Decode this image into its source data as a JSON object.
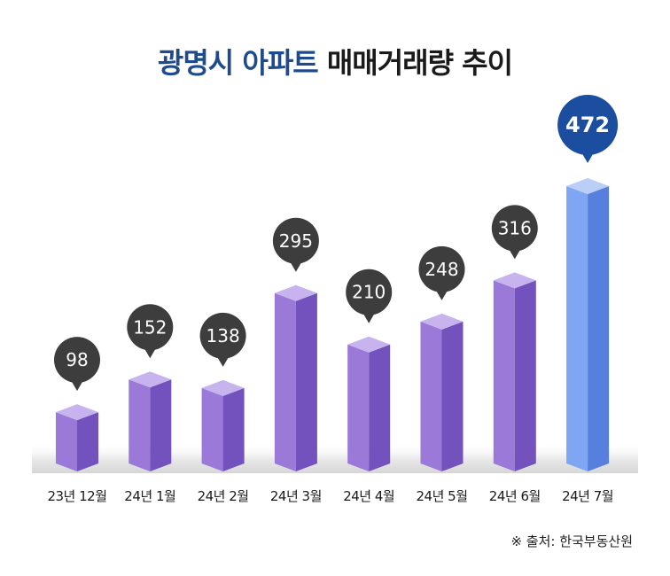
{
  "title": {
    "part1": "광명시 아파트",
    "part2": "매매거래량 추이"
  },
  "source": "※ 출처: 한국부동산원",
  "colors": {
    "bar_front": "#9a79d8",
    "bar_side": "#7452bd",
    "bar_top": "#c7b3ee",
    "highlight_front": "#7ea6f2",
    "highlight_side": "#5780de",
    "highlight_top": "#b9cff8",
    "bubble": "#3d3d3d",
    "highlight_bubble": "#1c4ea0",
    "title_accent": "#1f4a8c"
  },
  "chart_data": {
    "type": "bar",
    "title": "광명시 아파트 매매거래량 추이",
    "categories": [
      "23년 12월",
      "24년 1월",
      "24년 2월",
      "24년 3월",
      "24년 4월",
      "24년 5월",
      "24년 6월",
      "24년 7월"
    ],
    "values": [
      98,
      152,
      138,
      295,
      210,
      248,
      316,
      472
    ],
    "highlight_index": 7,
    "ylim": [
      0,
      472
    ],
    "grid": false,
    "legend": "none"
  }
}
